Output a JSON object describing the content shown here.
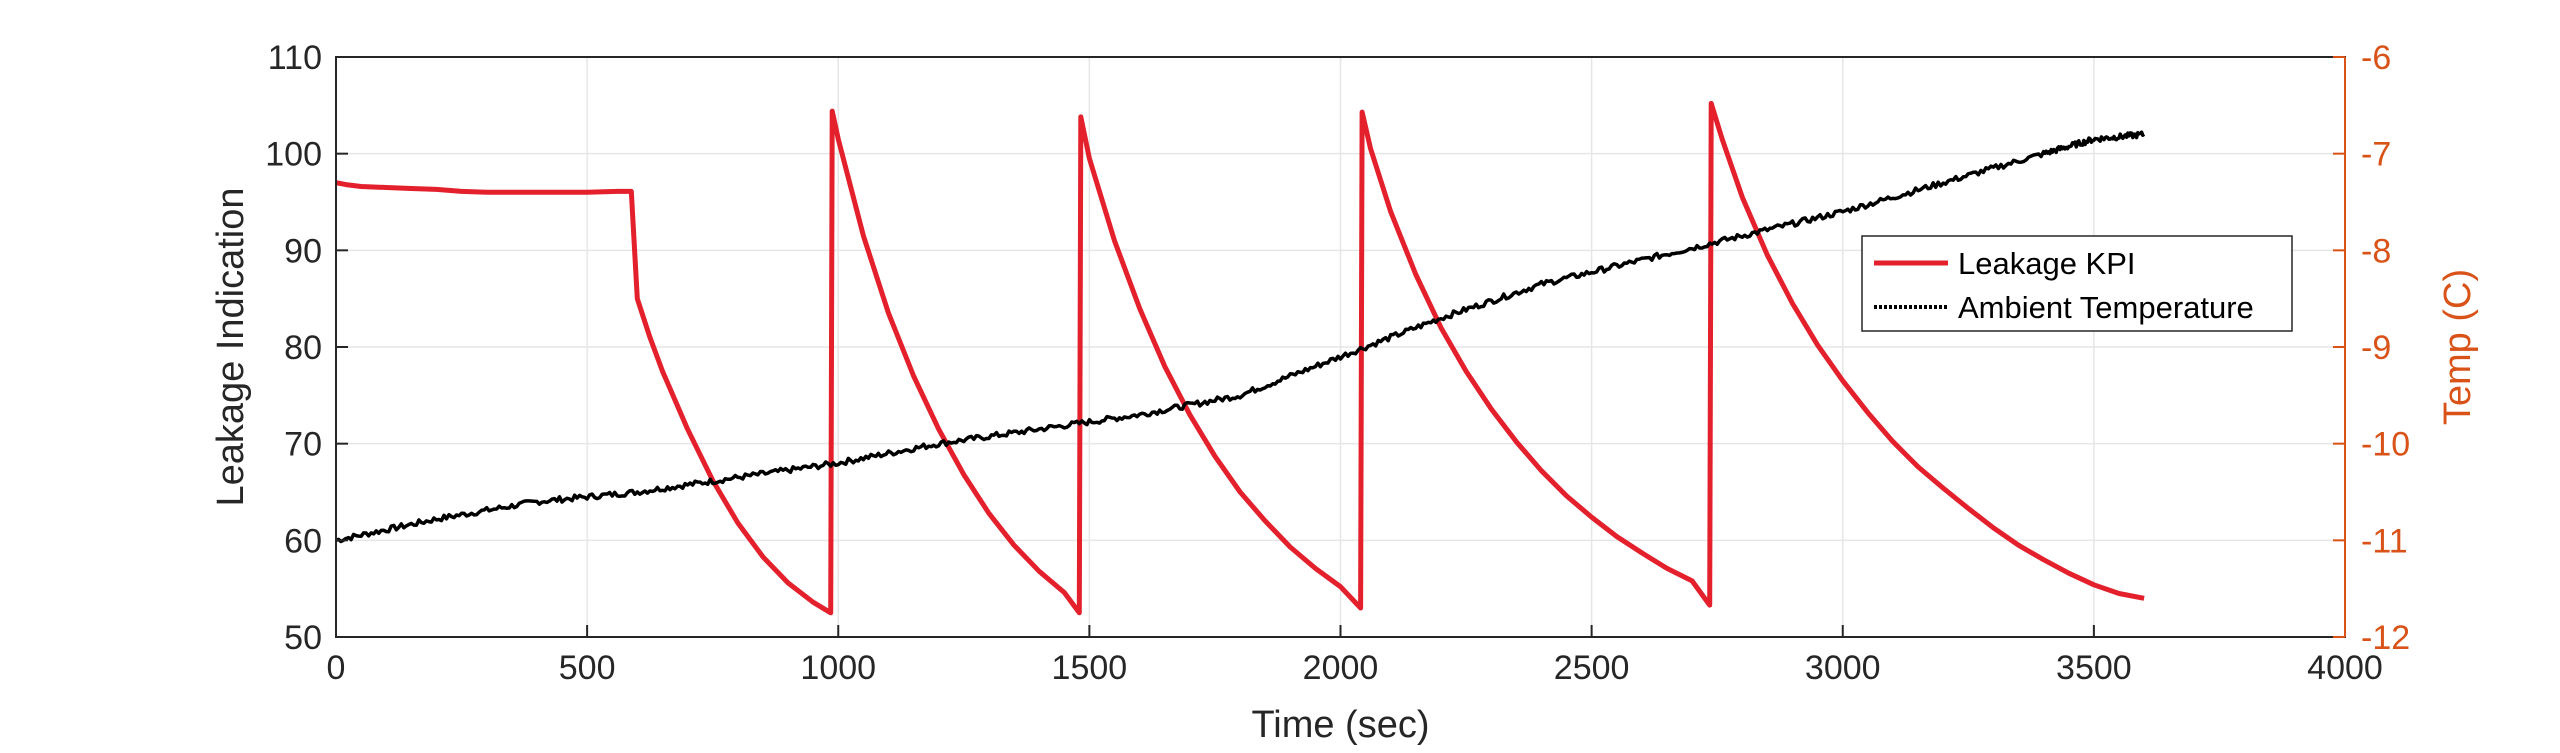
{
  "chart_data": {
    "type": "line",
    "x_axis": {
      "label": "Time (sec)",
      "range": [
        0,
        4000
      ],
      "ticks": [
        "0",
        "500",
        "1000",
        "1500",
        "2000",
        "2500",
        "3000",
        "3500",
        "4000"
      ]
    },
    "y_axis_left": {
      "label": "Leakage Indication",
      "range": [
        50,
        110
      ],
      "ticks": [
        "50",
        "60",
        "70",
        "80",
        "90",
        "100",
        "110"
      ]
    },
    "y_axis_right": {
      "label": "Temp (C)",
      "range": [
        -12,
        -6
      ],
      "ticks": [
        "-12",
        "-11",
        "-10",
        "-9",
        "-8",
        "-7",
        "-6"
      ],
      "color": "#d95319"
    },
    "grid": true,
    "legend": {
      "placement": "right",
      "entries": [
        {
          "label": "Leakage KPI",
          "style": "solid",
          "color": "#e3202b"
        },
        {
          "label": "Ambient Temperature",
          "style": "dotted",
          "color": "#000000"
        }
      ]
    },
    "series": [
      {
        "name": "Leakage KPI",
        "axis": "left",
        "color": "#e3202b",
        "points": [
          [
            0,
            97
          ],
          [
            20,
            96.8
          ],
          [
            50,
            96.6
          ],
          [
            100,
            96.5
          ],
          [
            150,
            96.4
          ],
          [
            200,
            96.3
          ],
          [
            250,
            96.1
          ],
          [
            300,
            96.0
          ],
          [
            400,
            96.0
          ],
          [
            500,
            96.0
          ],
          [
            560,
            96.1
          ],
          [
            588,
            96.1
          ],
          [
            600,
            85
          ],
          [
            625,
            81
          ],
          [
            650,
            77.5
          ],
          [
            700,
            71.5
          ],
          [
            750,
            66.2
          ],
          [
            800,
            61.8
          ],
          [
            850,
            58.3
          ],
          [
            900,
            55.6
          ],
          [
            950,
            53.6
          ],
          [
            985,
            52.5
          ],
          [
            988,
            104.4
          ],
          [
            1000,
            101.5
          ],
          [
            1050,
            91.5
          ],
          [
            1100,
            83.5
          ],
          [
            1150,
            77
          ],
          [
            1200,
            71.5
          ],
          [
            1250,
            66.8
          ],
          [
            1300,
            62.8
          ],
          [
            1350,
            59.5
          ],
          [
            1400,
            56.8
          ],
          [
            1450,
            54.6
          ],
          [
            1480,
            52.5
          ],
          [
            1483,
            103.8
          ],
          [
            1500,
            99.5
          ],
          [
            1550,
            91
          ],
          [
            1600,
            84
          ],
          [
            1650,
            78
          ],
          [
            1700,
            73
          ],
          [
            1750,
            68.7
          ],
          [
            1800,
            65
          ],
          [
            1850,
            62
          ],
          [
            1900,
            59.3
          ],
          [
            1950,
            57.1
          ],
          [
            2000,
            55.2
          ],
          [
            2040,
            53
          ],
          [
            2043,
            104.3
          ],
          [
            2060,
            100.5
          ],
          [
            2100,
            94
          ],
          [
            2150,
            87.5
          ],
          [
            2200,
            82
          ],
          [
            2250,
            77.5
          ],
          [
            2300,
            73.6
          ],
          [
            2350,
            70.2
          ],
          [
            2400,
            67.2
          ],
          [
            2450,
            64.6
          ],
          [
            2500,
            62.4
          ],
          [
            2550,
            60.4
          ],
          [
            2600,
            58.7
          ],
          [
            2650,
            57.1
          ],
          [
            2700,
            55.8
          ],
          [
            2735,
            53.3
          ],
          [
            2738,
            105.2
          ],
          [
            2760,
            101.5
          ],
          [
            2800,
            95.5
          ],
          [
            2850,
            89.5
          ],
          [
            2900,
            84.5
          ],
          [
            2950,
            80.2
          ],
          [
            3000,
            76.5
          ],
          [
            3050,
            73.2
          ],
          [
            3100,
            70.2
          ],
          [
            3150,
            67.6
          ],
          [
            3200,
            65.4
          ],
          [
            3250,
            63.3
          ],
          [
            3300,
            61.3
          ],
          [
            3350,
            59.5
          ],
          [
            3400,
            58
          ],
          [
            3450,
            56.6
          ],
          [
            3500,
            55.4
          ],
          [
            3550,
            54.5
          ],
          [
            3600,
            54
          ]
        ]
      },
      {
        "name": "Ambient Temperature",
        "axis": "right",
        "color": "#000000",
        "points": [
          [
            0,
            -11.0
          ],
          [
            200,
            -10.78
          ],
          [
            400,
            -10.6
          ],
          [
            600,
            -10.5
          ],
          [
            800,
            -10.35
          ],
          [
            1000,
            -10.2
          ],
          [
            1200,
            -10.0
          ],
          [
            1400,
            -9.85
          ],
          [
            1600,
            -9.7
          ],
          [
            1800,
            -9.5
          ],
          [
            2000,
            -9.1
          ],
          [
            2200,
            -8.7
          ],
          [
            2400,
            -8.35
          ],
          [
            2600,
            -8.1
          ],
          [
            2800,
            -7.85
          ],
          [
            3000,
            -7.6
          ],
          [
            3200,
            -7.3
          ],
          [
            3400,
            -7.0
          ],
          [
            3500,
            -6.85
          ],
          [
            3600,
            -6.8
          ]
        ]
      }
    ]
  }
}
